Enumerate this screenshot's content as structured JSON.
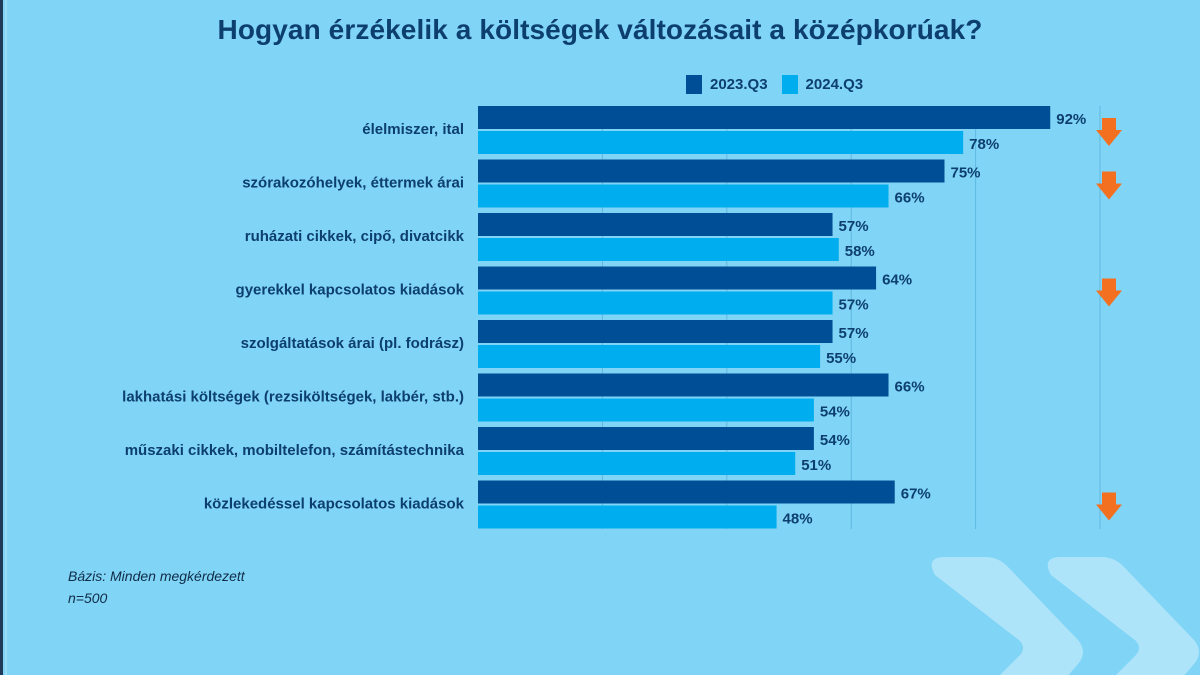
{
  "chart_data": {
    "type": "bar",
    "orientation": "horizontal",
    "title": "Hogyan érzékelik a költségek változásait a középkorúak?",
    "xlabel": "",
    "ylabel": "",
    "xlim": [
      0,
      100
    ],
    "grid": true,
    "legend_position": "top",
    "categories": [
      "élelmiszer, ital",
      "szórakozóhelyek, éttermek árai",
      "ruházati cikkek, cipő, divatcikk",
      "gyerekkel kapcsolatos kiadások",
      "szolgáltatások árai (pl. fodrász)",
      "lakhatási költségek (rezsiköltségek, lakbér, stb.)",
      "műszaki cikkek, mobiltelefon, számítástechnika",
      "közlekedéssel kapcsolatos kiadások"
    ],
    "series": [
      {
        "name": "2023.Q3",
        "color": "#004f96",
        "values": [
          92,
          75,
          57,
          64,
          57,
          66,
          54,
          67
        ]
      },
      {
        "name": "2024.Q3",
        "color": "#00aeef",
        "values": [
          78,
          66,
          58,
          57,
          55,
          54,
          51,
          48
        ]
      }
    ],
    "value_suffix": "%",
    "decrease_markers": [
      true,
      true,
      false,
      true,
      false,
      false,
      false,
      true
    ],
    "marker_color": "#f37021"
  },
  "footnote": {
    "base": "Bázis: Minden megkérdezett",
    "n": "n=500"
  }
}
